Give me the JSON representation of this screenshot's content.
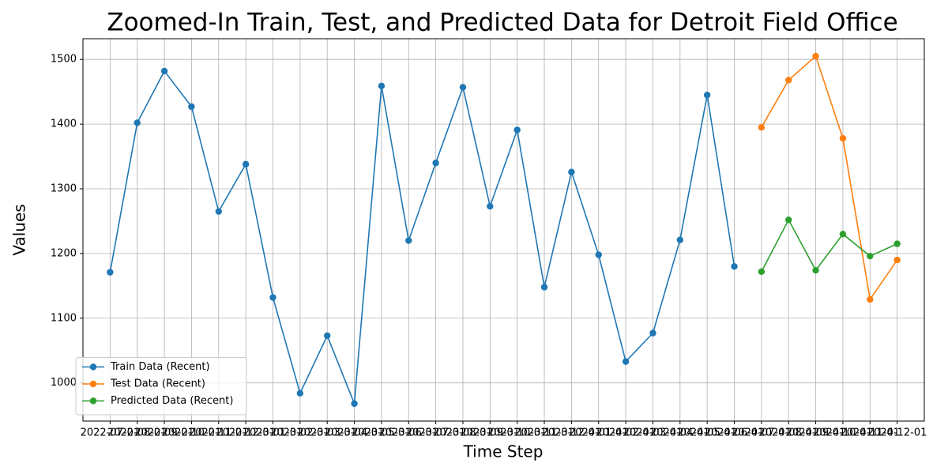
{
  "chart_data": {
    "type": "line",
    "title": "Zoomed-In Train, Test, and Predicted Data for Detroit Field Office",
    "x_label": "Time Step",
    "y_label": "Values",
    "categories": [
      "2022-07-01",
      "2022-08-01",
      "2022-09-01",
      "2022-10-01",
      "2022-11-01",
      "2022-12-01",
      "2023-01-01",
      "2023-02-01",
      "2023-03-01",
      "2023-04-01",
      "2023-05-01",
      "2023-06-01",
      "2023-07-01",
      "2023-08-01",
      "2023-09-01",
      "2023-10-01",
      "2023-11-01",
      "2023-12-01",
      "2024-01-01",
      "2024-02-01",
      "2024-03-01",
      "2024-04-01",
      "2024-05-01",
      "2024-06-01",
      "2024-07-01",
      "2024-08-01",
      "2024-09-01",
      "2024-10-01",
      "2024-11-01",
      "2024-12-01"
    ],
    "series": [
      {
        "name": "Train Data (Recent)",
        "color": "#1f77b4",
        "values": [
          1171,
          1402,
          1482,
          1427,
          1265,
          1338,
          1132,
          984,
          1073,
          968,
          1459,
          1220,
          1340,
          1457,
          1273,
          1391,
          1148,
          1326,
          1198,
          1033,
          1077,
          1221,
          1445,
          1180,
          null,
          null,
          null,
          null,
          null,
          null
        ]
      },
      {
        "name": "Test Data (Recent)",
        "color": "#ff7f0e",
        "values": [
          null,
          null,
          null,
          null,
          null,
          null,
          null,
          null,
          null,
          null,
          null,
          null,
          null,
          null,
          null,
          null,
          null,
          null,
          null,
          null,
          null,
          null,
          null,
          null,
          1395,
          1468,
          1505,
          1378,
          1129,
          1190
        ]
      },
      {
        "name": "Predicted Data (Recent)",
        "color": "#2ca02c",
        "values": [
          null,
          null,
          null,
          null,
          null,
          null,
          null,
          null,
          null,
          null,
          null,
          null,
          null,
          null,
          null,
          null,
          null,
          null,
          null,
          null,
          null,
          null,
          null,
          null,
          1172,
          1252,
          1174,
          1230,
          1196,
          1215
        ]
      }
    ],
    "ylim": [
      941,
      1532
    ],
    "yticks": [
      1000,
      1100,
      1200,
      1300,
      1400,
      1500
    ],
    "grid": true,
    "legend": "lower left"
  }
}
